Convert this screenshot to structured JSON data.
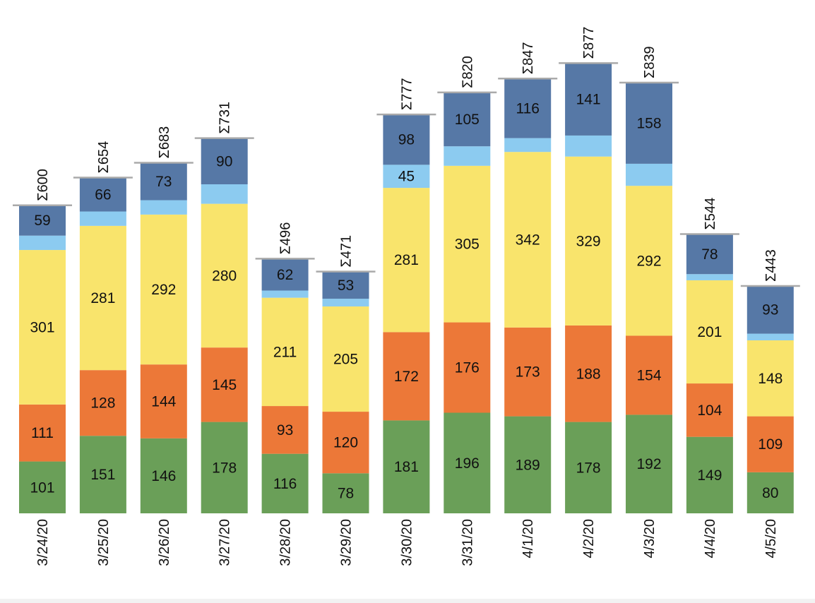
{
  "chart_data": {
    "type": "bar",
    "stacked": true,
    "title": "",
    "xlabel": "",
    "ylabel": "",
    "ylim": [
      0,
      1000
    ],
    "grid": false,
    "categories": [
      "3/24/20",
      "3/25/20",
      "3/26/20",
      "3/27/20",
      "3/28/20",
      "3/29/20",
      "3/30/20",
      "3/31/20",
      "4/1/20",
      "4/2/20",
      "4/3/20",
      "4/4/20",
      "4/5/20"
    ],
    "series": [
      {
        "color": "#6a9f58",
        "values": [
          101,
          151,
          146,
          178,
          116,
          78,
          181,
          196,
          189,
          178,
          192,
          149,
          80
        ],
        "labeled": true
      },
      {
        "color": "#ec7838",
        "values": [
          111,
          128,
          144,
          145,
          93,
          120,
          172,
          176,
          173,
          188,
          154,
          104,
          109
        ],
        "labeled": true
      },
      {
        "color": "#f9e46c",
        "values": [
          301,
          281,
          292,
          280,
          211,
          205,
          281,
          305,
          342,
          329,
          292,
          201,
          148
        ],
        "labeled": true
      },
      {
        "color": "#8ccbf0",
        "values": [
          28,
          28,
          28,
          38,
          14,
          15,
          45,
          38,
          27,
          41,
          43,
          12,
          13
        ],
        "labeled": false,
        "shown_labels": {
          "3/30/20": "45"
        }
      },
      {
        "color": "#5678a6",
        "values": [
          59,
          66,
          73,
          90,
          62,
          53,
          98,
          105,
          116,
          141,
          158,
          78,
          93
        ],
        "labeled": true
      }
    ],
    "totals": [
      "Σ600",
      "Σ654",
      "Σ683",
      "Σ731",
      "Σ496",
      "Σ471",
      "Σ777",
      "Σ820",
      "Σ847",
      "Σ877",
      "Σ839",
      "Σ544",
      "Σ443"
    ]
  }
}
